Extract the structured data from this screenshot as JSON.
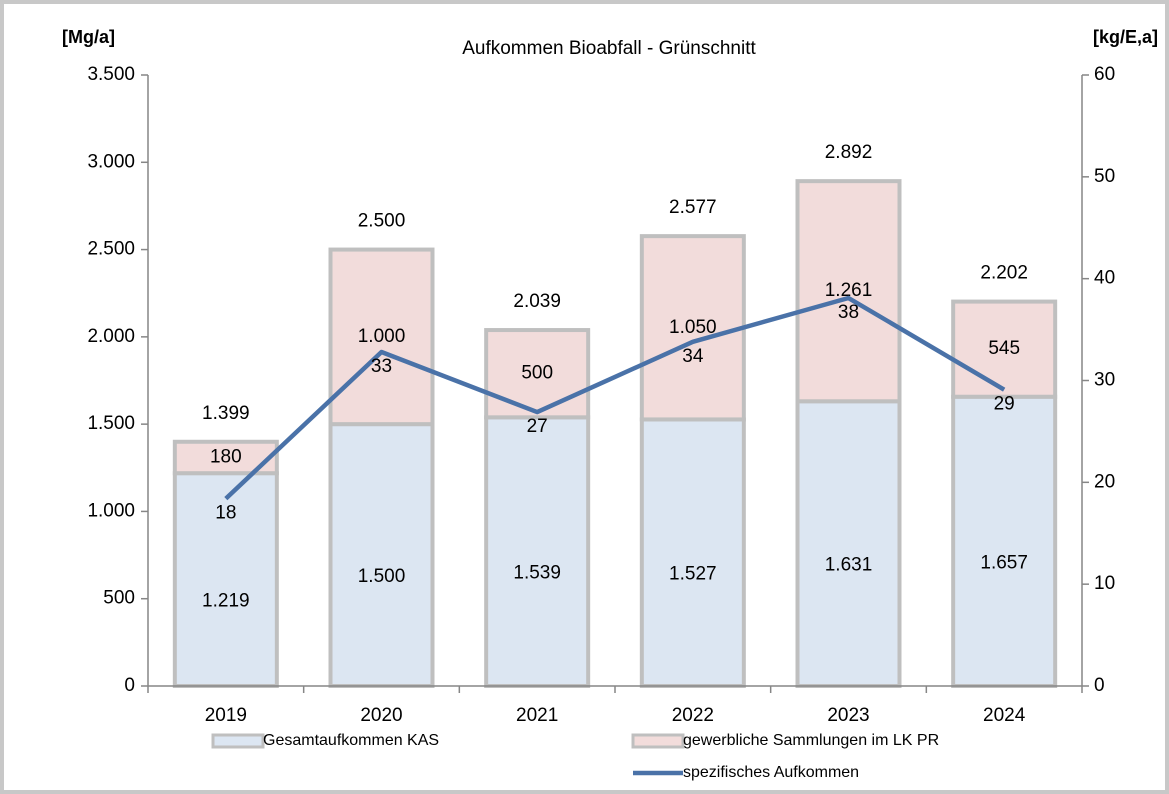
{
  "chart_data": {
    "type": "bar",
    "stacked": true,
    "title": "Aufkommen Bioabfall - Grünschnitt",
    "y_label": "[Mg/a]",
    "y2_label": "[kg/E,a]",
    "categories": [
      "2019",
      "2020",
      "2021",
      "2022",
      "2023",
      "2024"
    ],
    "series": [
      {
        "name": "Gesamtaufkommen KAS",
        "type": "bar",
        "color": "#dce6f2",
        "values": [
          1219,
          1500,
          1539,
          1527,
          1631,
          1657
        ],
        "value_labels": [
          "1.219",
          "1.500",
          "1.539",
          "1.527",
          "1.631",
          "1.657"
        ]
      },
      {
        "name": "gewerbliche Sammlungen im LK PR",
        "type": "bar",
        "color": "#f2dcdb",
        "values": [
          180,
          1000,
          500,
          1050,
          1261,
          545
        ],
        "value_labels": [
          "180",
          "1.000",
          "500",
          "1.050",
          "1.261",
          "545"
        ]
      },
      {
        "name": "spezifisches Aufkommen",
        "type": "line",
        "axis": "y2",
        "color": "#4a72a8",
        "values": [
          18.4,
          32.8,
          26.9,
          33.8,
          38.1,
          29.1
        ],
        "value_labels": [
          "18",
          "33",
          "27",
          "34",
          "38",
          "29"
        ]
      }
    ],
    "totals": {
      "values": [
        1399,
        2500,
        2039,
        2577,
        2892,
        2202
      ],
      "value_labels": [
        "1.399",
        "2.500",
        "2.039",
        "2.577",
        "2.892",
        "2.202"
      ]
    },
    "ylim": [
      0,
      3500
    ],
    "yticks": [
      0,
      500,
      {
        "value": 1000,
        "label": "1.000"
      },
      {
        "value": 1500,
        "label": "1.500"
      },
      {
        "value": 2000,
        "label": "2.000"
      },
      {
        "value": 2500,
        "label": "2.500"
      },
      {
        "value": 3000,
        "label": "3.000"
      },
      {
        "value": 3500,
        "label": "3.500"
      }
    ],
    "y2lim": [
      0,
      60
    ],
    "y2ticks": [
      0,
      10,
      20,
      30,
      40,
      50,
      60
    ],
    "bar_border": "#bfbfbf",
    "grid": false,
    "legend": "bottom"
  }
}
